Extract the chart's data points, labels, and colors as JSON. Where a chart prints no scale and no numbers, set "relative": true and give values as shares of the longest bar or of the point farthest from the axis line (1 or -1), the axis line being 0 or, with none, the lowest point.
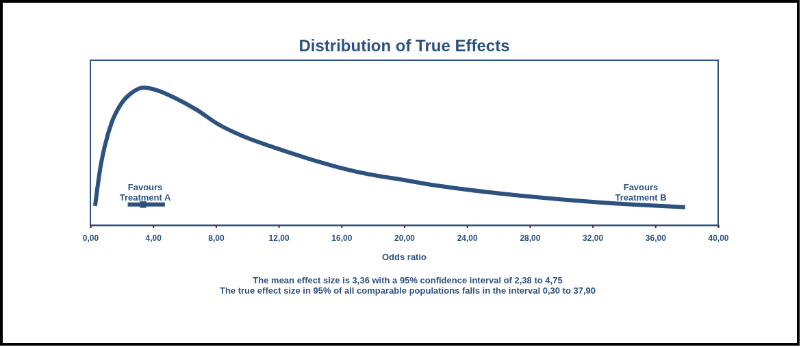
{
  "chart_data": {
    "type": "line",
    "title": "Distribution of True Effects",
    "xlabel": "Odds ratio",
    "relative": true,
    "xlim": [
      0,
      40
    ],
    "xticks": [
      {
        "value": 0,
        "label": "0,00"
      },
      {
        "value": 4,
        "label": "4,00"
      },
      {
        "value": 8,
        "label": "8,00"
      },
      {
        "value": 12,
        "label": "12,00"
      },
      {
        "value": 16,
        "label": "16,00"
      },
      {
        "value": 20,
        "label": "20,00"
      },
      {
        "value": 24,
        "label": "24,00"
      },
      {
        "value": 28,
        "label": "28,00"
      },
      {
        "value": 32,
        "label": "32,00"
      },
      {
        "value": 36,
        "label": "36,00"
      },
      {
        "value": 40,
        "label": "40,00"
      }
    ],
    "series": [
      {
        "color": "#2d527f",
        "x": [
          0.3,
          0.64,
          0.93,
          1.37,
          1.95,
          2.67,
          3.4,
          4.27,
          5.29,
          6.75,
          8.2,
          9.65,
          11.83,
          14.0,
          16.9,
          20.4,
          21.4,
          25.35,
          29.7,
          34.5,
          37.9
        ],
        "values": [
          0.14,
          0.42,
          0.58,
          0.75,
          0.88,
          0.965,
          1.0,
          0.98,
          0.93,
          0.84,
          0.73,
          0.65,
          0.56,
          0.48,
          0.39,
          0.32,
          0.3,
          0.24,
          0.19,
          0.15,
          0.13
        ]
      },
      {
        "type": "scatter",
        "color": "#2d527f",
        "marker": "square",
        "x": [
          3.36
        ],
        "values": [
          0.15
        ],
        "xerrors": [
          [
            2.38,
            4.75
          ]
        ]
      }
    ],
    "annotations": [
      "Favours Treatment A",
      "Favours Treatment B",
      "The mean effect size is 3,36 with a 95% confidence interval of 2,38 to 4,75",
      "The true effect size in 95% of all comparable populations falls in the interval 0,30 to 37,90"
    ]
  }
}
